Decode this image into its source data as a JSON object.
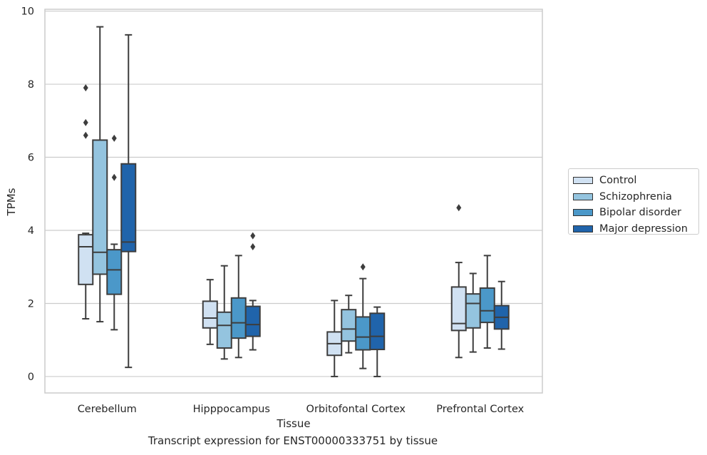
{
  "caption": "Transcript expression for ENST00000333751 by tissue",
  "chart_data": {
    "type": "box",
    "xlabel": "Tissue",
    "ylabel": "TPMs",
    "ylim": [
      -0.45,
      10.05
    ],
    "yticks": [
      0,
      2,
      4,
      6,
      8,
      10
    ],
    "grid": true,
    "legend_position": "right",
    "categories": [
      "Cerebellum",
      "Hipppocampus",
      "Orbitofontal Cortex",
      "Prefrontal Cortex"
    ],
    "series": [
      {
        "name": "Control",
        "color": "#d0e1f2",
        "boxes": [
          {
            "whislo": 1.58,
            "q1": 2.52,
            "med": 3.55,
            "q3": 3.88,
            "whishi": 3.92,
            "fliers": [
              6.6,
              6.95,
              7.9
            ]
          },
          {
            "whislo": 0.88,
            "q1": 1.33,
            "med": 1.6,
            "q3": 2.06,
            "whishi": 2.65,
            "fliers": []
          },
          {
            "whislo": 0.0,
            "q1": 0.58,
            "med": 0.9,
            "q3": 1.22,
            "whishi": 2.08,
            "fliers": []
          },
          {
            "whislo": 0.52,
            "q1": 1.26,
            "med": 1.45,
            "q3": 2.45,
            "whishi": 3.12,
            "fliers": [
              4.62
            ]
          }
        ]
      },
      {
        "name": "Schizophrenia",
        "color": "#94c4df",
        "boxes": [
          {
            "whislo": 1.5,
            "q1": 2.8,
            "med": 3.4,
            "q3": 6.47,
            "whishi": 9.57,
            "fliers": []
          },
          {
            "whislo": 0.48,
            "q1": 0.78,
            "med": 1.4,
            "q3": 1.76,
            "whishi": 3.03,
            "fliers": []
          },
          {
            "whislo": 0.65,
            "q1": 0.97,
            "med": 1.3,
            "q3": 1.83,
            "whishi": 2.22,
            "fliers": []
          },
          {
            "whislo": 0.67,
            "q1": 1.33,
            "med": 2.0,
            "q3": 2.26,
            "whishi": 2.82,
            "fliers": []
          }
        ]
      },
      {
        "name": "Bipolar disorder",
        "color": "#4b98c9",
        "boxes": [
          {
            "whislo": 1.28,
            "q1": 2.25,
            "med": 2.92,
            "q3": 3.47,
            "whishi": 3.62,
            "fliers": [
              5.45,
              6.52
            ]
          },
          {
            "whislo": 0.52,
            "q1": 1.05,
            "med": 1.47,
            "q3": 2.15,
            "whishi": 3.31,
            "fliers": []
          },
          {
            "whislo": 0.22,
            "q1": 0.73,
            "med": 1.08,
            "q3": 1.63,
            "whishi": 2.68,
            "fliers": [
              3.0
            ]
          },
          {
            "whislo": 0.78,
            "q1": 1.48,
            "med": 1.8,
            "q3": 2.42,
            "whishi": 3.31,
            "fliers": []
          }
        ]
      },
      {
        "name": "Major depression",
        "color": "#2064ab",
        "boxes": [
          {
            "whislo": 0.25,
            "q1": 3.42,
            "med": 3.68,
            "q3": 5.82,
            "whishi": 9.35,
            "fliers": []
          },
          {
            "whislo": 0.73,
            "q1": 1.1,
            "med": 1.42,
            "q3": 1.92,
            "whishi": 2.08,
            "fliers": [
              3.55,
              3.85
            ]
          },
          {
            "whislo": 0.0,
            "q1": 0.74,
            "med": 1.1,
            "q3": 1.73,
            "whishi": 1.9,
            "fliers": []
          },
          {
            "whislo": 0.75,
            "q1": 1.3,
            "med": 1.62,
            "q3": 1.94,
            "whishi": 2.6,
            "fliers": []
          }
        ]
      }
    ]
  }
}
